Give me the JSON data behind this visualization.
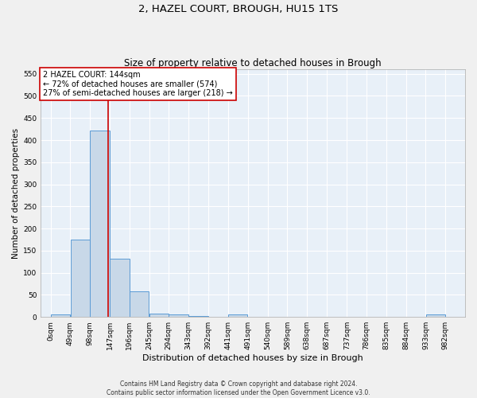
{
  "title": "2, HAZEL COURT, BROUGH, HU15 1TS",
  "subtitle": "Size of property relative to detached houses in Brough",
  "xlabel": "Distribution of detached houses by size in Brough",
  "ylabel": "Number of detached properties",
  "bin_edges": [
    0,
    49,
    98,
    147,
    196,
    245,
    294,
    343,
    392,
    441,
    491,
    540,
    589,
    638,
    687,
    737,
    786,
    835,
    884,
    933,
    982
  ],
  "bar_heights": [
    5,
    175,
    422,
    132,
    58,
    8,
    5,
    2,
    0,
    5,
    0,
    0,
    0,
    0,
    0,
    0,
    0,
    0,
    0,
    5
  ],
  "bar_color": "#c8d8e8",
  "bar_edge_color": "#5b9bd5",
  "vline_x": 144,
  "vline_color": "#cc0000",
  "annotation_title": "2 HAZEL COURT: 144sqm",
  "annotation_line1": "← 72% of detached houses are smaller (574)",
  "annotation_line2": "27% of semi-detached houses are larger (218) →",
  "annotation_box_color": "#ffffff",
  "annotation_edge_color": "#cc0000",
  "ylim": [
    0,
    560
  ],
  "yticks": [
    0,
    50,
    100,
    150,
    200,
    250,
    300,
    350,
    400,
    450,
    500,
    550
  ],
  "bg_color": "#e8f0f8",
  "grid_color": "#ffffff",
  "footer_line1": "Contains HM Land Registry data © Crown copyright and database right 2024.",
  "footer_line2": "Contains public sector information licensed under the Open Government Licence v3.0.",
  "title_fontsize": 9.5,
  "subtitle_fontsize": 8.5,
  "axis_label_fontsize": 7.5,
  "tick_fontsize": 6.5,
  "annotation_fontsize": 7.0,
  "footer_fontsize": 5.5
}
